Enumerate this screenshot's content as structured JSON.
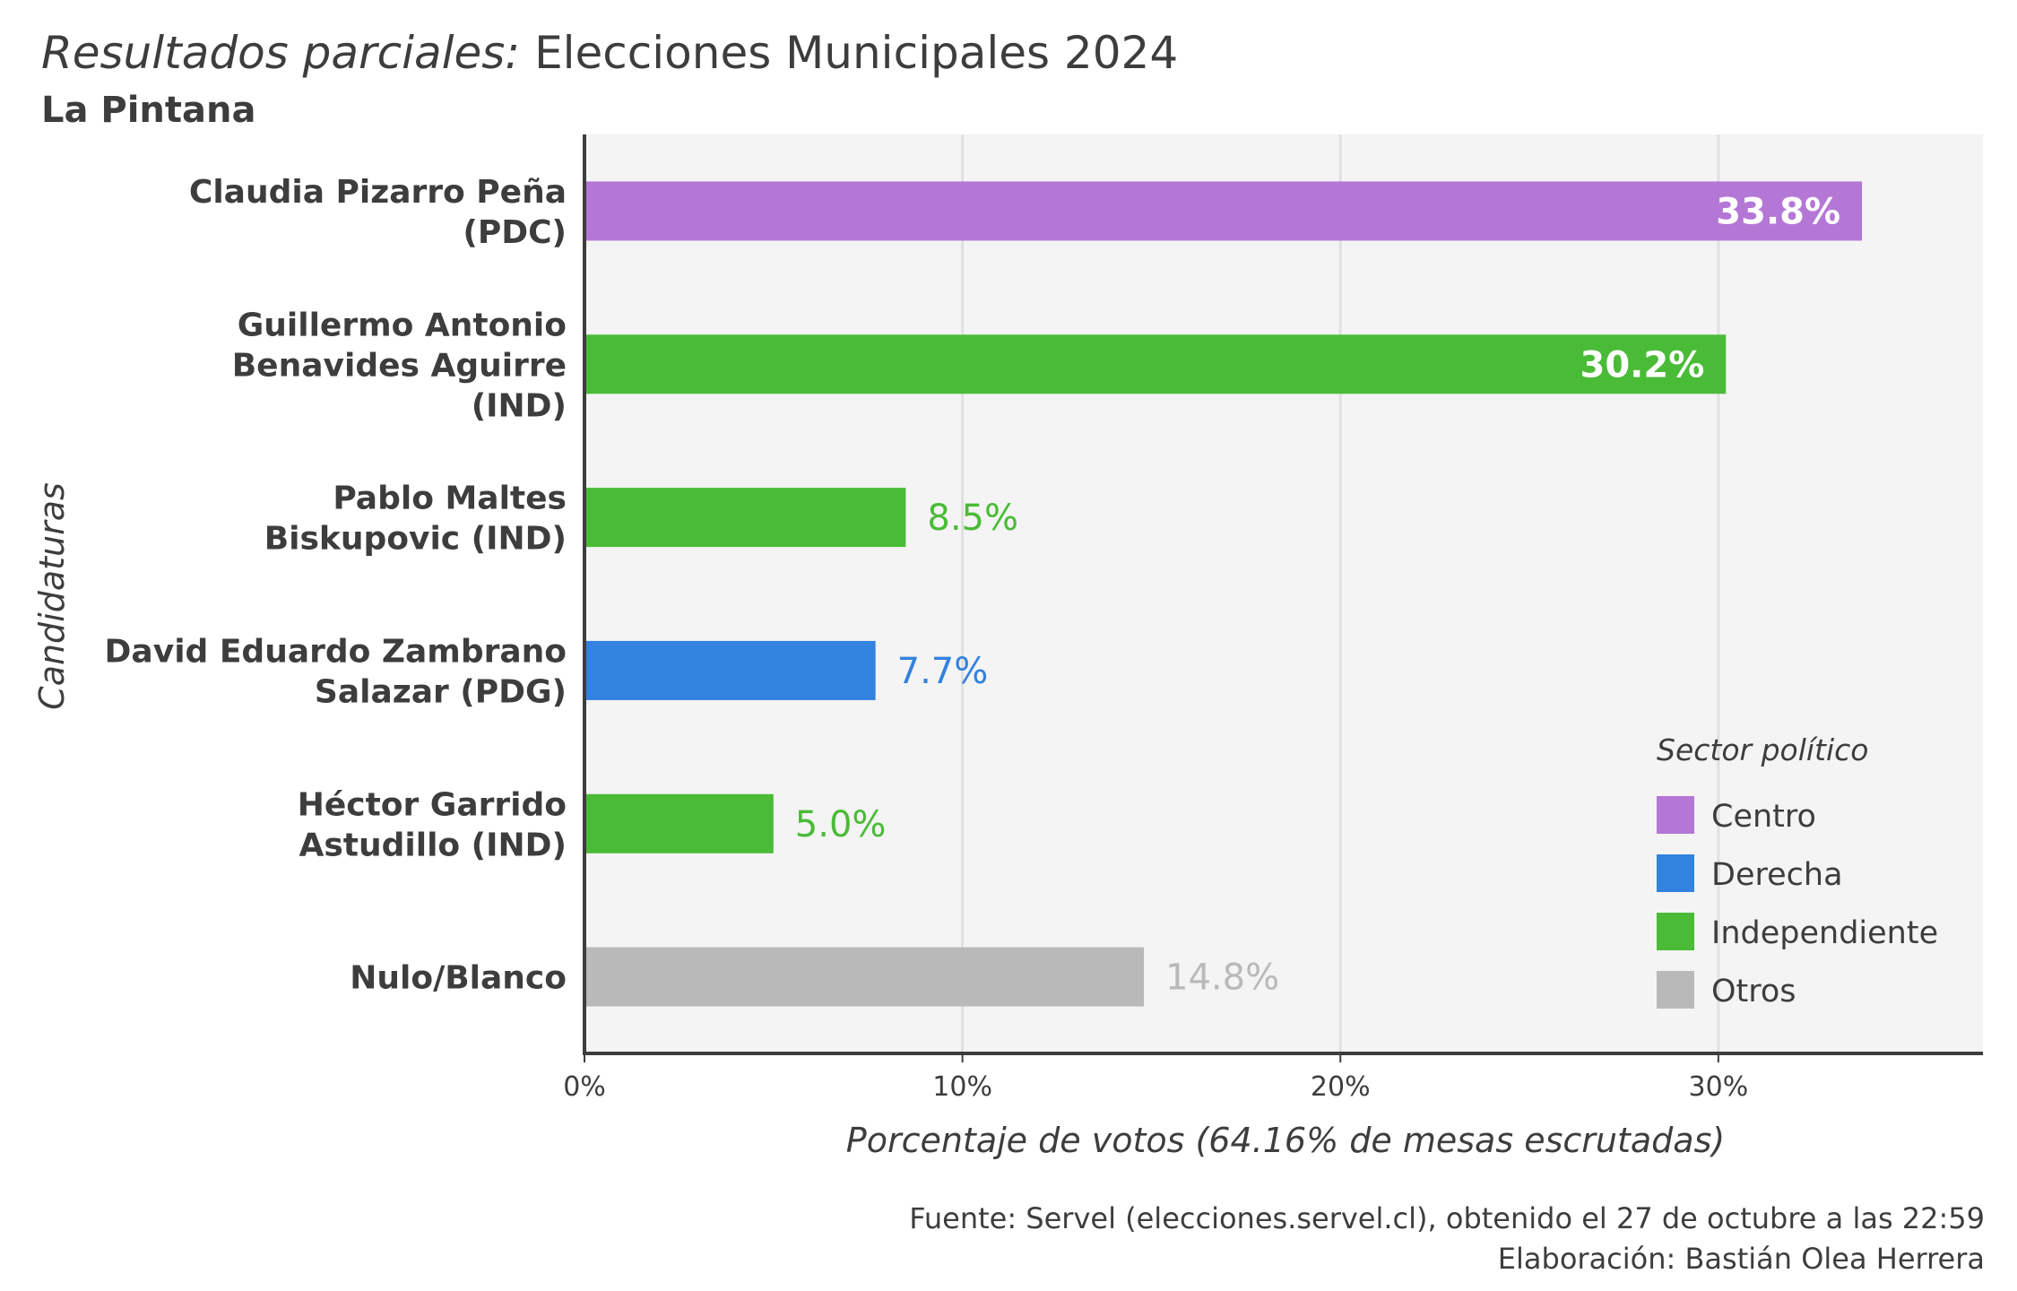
{
  "chart_data": {
    "type": "bar",
    "orientation": "horizontal",
    "title_italic": "Resultados parciales:",
    "title": "Elecciones Municipales 2024",
    "subtitle": "La Pintana",
    "xlabel": "Porcentaje de votos (64.16% de mesas escrutadas)",
    "ylabel": "Candidaturas",
    "xlim": [
      0,
      37
    ],
    "x_ticks": [
      0,
      10,
      20,
      30
    ],
    "x_tick_labels": [
      "0%",
      "10%",
      "20%",
      "30%"
    ],
    "grid": true,
    "categories": [
      [
        "Claudia Pizarro Peña",
        "(PDC)"
      ],
      [
        "Guillermo Antonio",
        "Benavides Aguirre",
        "(IND)"
      ],
      [
        "Pablo Maltes",
        "Biskupovic (IND)"
      ],
      [
        "David Eduardo Zambrano",
        "Salazar (PDG)"
      ],
      [
        "Héctor Garrido",
        "Astudillo (IND)"
      ],
      [
        "Nulo/Blanco"
      ]
    ],
    "values": [
      33.8,
      30.2,
      8.5,
      7.7,
      5.0,
      14.8
    ],
    "value_labels": [
      "33.8%",
      "30.2%",
      "8.5%",
      "7.7%",
      "5.0%",
      "14.8%"
    ],
    "sectors": [
      "Centro",
      "Independiente",
      "Independiente",
      "Derecha",
      "Independiente",
      "Otros"
    ],
    "legend": {
      "title": "Sector político",
      "position": "bottom-right",
      "items": [
        {
          "label": "Centro",
          "color": "#b477d5"
        },
        {
          "label": "Derecha",
          "color": "#3282df"
        },
        {
          "label": "Independiente",
          "color": "#4abb37"
        },
        {
          "label": "Otros",
          "color": "#b9b9b9"
        }
      ]
    },
    "panel_background": "#f4f4f4"
  },
  "caption": {
    "line1": "Fuente: Servel (elecciones.servel.cl), obtenido el 27 de octubre a las 22:59",
    "line2": "Elaboración: Bastián Olea Herrera"
  }
}
